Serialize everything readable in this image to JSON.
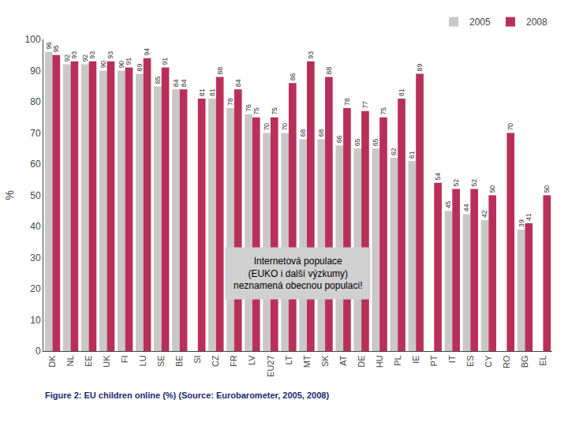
{
  "chart_data": {
    "type": "bar",
    "categories": [
      "DK",
      "NL",
      "EE",
      "UK",
      "FI",
      "LU",
      "SE",
      "BE",
      "SI",
      "CZ",
      "FR",
      "LV",
      "EU27",
      "LT",
      "MT",
      "SK",
      "AT",
      "DE",
      "HU",
      "PL",
      "IE",
      "PT",
      "IT",
      "ES",
      "CY",
      "RO",
      "BG",
      "EL"
    ],
    "series": [
      {
        "name": "2005",
        "color": "#c8c8c8",
        "values": [
          96,
          92,
          92,
          90,
          90,
          89,
          85,
          84,
          null,
          81,
          78,
          76,
          70,
          70,
          68,
          68,
          66,
          65,
          65,
          62,
          61,
          null,
          45,
          44,
          42,
          null,
          39,
          null
        ]
      },
      {
        "name": "2008",
        "color": "#b8305a",
        "values": [
          95,
          93,
          93,
          93,
          91,
          94,
          91,
          84,
          81,
          88,
          84,
          75,
          75,
          86,
          93,
          88,
          78,
          77,
          75,
          81,
          89,
          54,
          52,
          52,
          50,
          70,
          41,
          50
        ]
      }
    ],
    "ylabel": "%",
    "ylim": [
      0,
      100
    ],
    "yticks": [
      0,
      10,
      20,
      30,
      40,
      50,
      60,
      70,
      80,
      90,
      100
    ],
    "grid": false,
    "legend": "upper right",
    "data_labels": true,
    "annotations": [
      {
        "text": "Internetová populace\n(EUKO i další výzkumy)\nneznamená obecnou populaci!",
        "color": "#d0d0d0"
      }
    ],
    "caption": "Figure 2: EU children online (%) (Source: Eurobarometer, 2005, 2008)"
  }
}
